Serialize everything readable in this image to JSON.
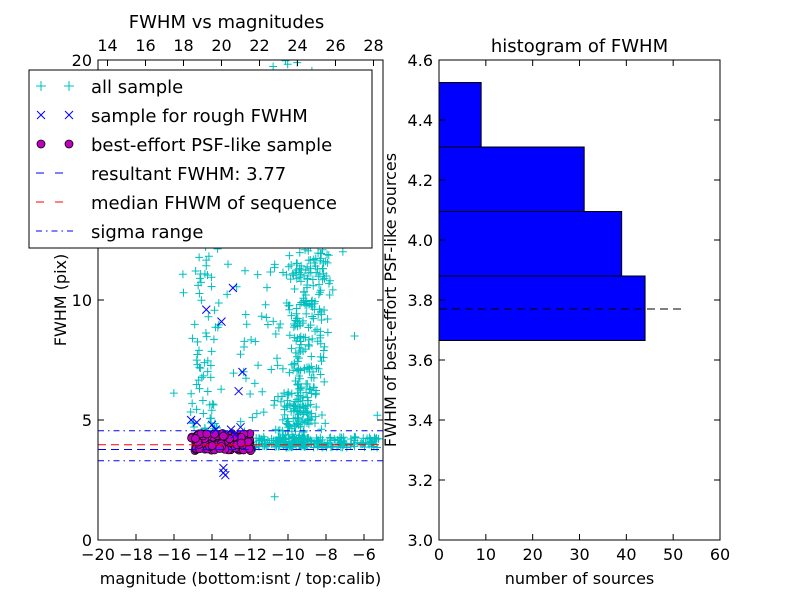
{
  "chart_data": [
    {
      "type": "scatter",
      "title": "FWHM vs magnitudes",
      "xlabel": "magnitude (bottom:isnt / top:calib)",
      "ylabel": "FWHM (pix)",
      "xlim": [
        -20,
        -5
      ],
      "ylim": [
        0,
        20
      ],
      "x_ticks": [
        -20,
        -18,
        -16,
        -14,
        -12,
        -10,
        -8,
        -6
      ],
      "x_tick_labels": [
        "−20",
        "−18",
        "−16",
        "−14",
        "−12",
        "−10",
        "−8",
        "−6"
      ],
      "top_x_ticks": [
        14,
        16,
        18,
        20,
        22,
        24,
        26,
        28
      ],
      "top_x_offset": 33.5,
      "y_ticks": [
        0,
        5,
        10,
        20
      ],
      "y_tick_labels": [
        "0",
        "5",
        "10",
        "20"
      ],
      "resultant_fwhm": 3.77,
      "median_fwhm": 3.97,
      "sigma_range": [
        3.3,
        4.55
      ],
      "legend": {
        "placement": "upper-left",
        "entries": [
          {
            "label": "all sample",
            "marker": "plus",
            "color": "#00bfbf"
          },
          {
            "label": "sample for rough FWHM",
            "marker": "x",
            "color": "#0000ff"
          },
          {
            "label": "best-effort PSF-like sample",
            "marker": "circle",
            "color": "#bf00bf"
          },
          {
            "label": "resultant FWHM: 3.77",
            "marker": "dashed",
            "color": "#0000ff"
          },
          {
            "label": "median FHWM of sequence",
            "marker": "dashed",
            "color": "#ff0000"
          },
          {
            "label": "sigma range",
            "marker": "dashdot",
            "color": "#0000ff"
          }
        ]
      },
      "rough_sample": [
        {
          "x": -15.1,
          "y": 5.0
        },
        {
          "x": -14.8,
          "y": 4.9
        },
        {
          "x": -14.3,
          "y": 9.6
        },
        {
          "x": -13.5,
          "y": 9.1
        },
        {
          "x": -12.9,
          "y": 10.5
        },
        {
          "x": -12.6,
          "y": 6.2
        },
        {
          "x": -12.4,
          "y": 7.0
        },
        {
          "x": -13.4,
          "y": 3.0
        },
        {
          "x": -13.4,
          "y": 2.8
        },
        {
          "x": -13.3,
          "y": 2.7
        },
        {
          "x": -13.0,
          "y": 4.6
        },
        {
          "x": -12.8,
          "y": 4.4
        },
        {
          "x": -14.0,
          "y": 4.8
        },
        {
          "x": -13.8,
          "y": 4.6
        },
        {
          "x": -12.5,
          "y": 4.7
        }
      ]
    },
    {
      "type": "bar",
      "orientation": "horizontal",
      "title": "histogram of FWHM",
      "xlabel": "number of sources",
      "ylabel": "FWHM of best-effort PSF-like sources",
      "xlim": [
        0,
        60
      ],
      "ylim": [
        3.0,
        4.6
      ],
      "x_ticks": [
        0,
        10,
        20,
        30,
        40,
        50,
        60
      ],
      "y_ticks": [
        3.0,
        3.2,
        3.4,
        3.6,
        3.8,
        4.0,
        4.2,
        4.4,
        4.6
      ],
      "y_tick_labels": [
        "3.0",
        "3.2",
        "3.4",
        "3.6",
        "3.8",
        "4.0",
        "4.2",
        "4.4",
        "4.6"
      ],
      "bins": [
        {
          "low": 3.665,
          "high": 3.88,
          "count": 44
        },
        {
          "low": 3.88,
          "high": 4.095,
          "count": 39
        },
        {
          "low": 4.095,
          "high": 4.31,
          "count": 31
        },
        {
          "low": 4.31,
          "high": 4.525,
          "count": 9
        }
      ],
      "bar_color": "#0000ff",
      "reference_line": {
        "y": 3.77,
        "x_range": [
          0,
          52
        ]
      }
    }
  ]
}
